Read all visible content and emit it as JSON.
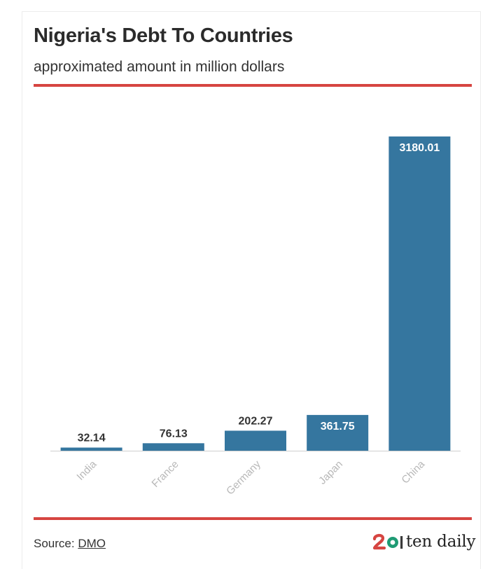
{
  "header": {
    "title": "Nigeria's Debt To Countries",
    "subtitle": "approximated amount in million dollars"
  },
  "footer": {
    "source_label": "Source:",
    "source_link": "DMO",
    "brand_name": "ten daily"
  },
  "colors": {
    "bar": "#35769f",
    "accent_rule": "#d64541",
    "axis": "#cfcfcf",
    "tick_label": "#b8b8b8",
    "label_dark": "#333333",
    "label_light": "#ffffff"
  },
  "chart_data": {
    "type": "bar",
    "title": "Nigeria's Debt To Countries",
    "subtitle": "approximated amount in million dollars",
    "categories": [
      "India",
      "France",
      "Germany",
      "Japan",
      "China"
    ],
    "values": [
      32.14,
      76.13,
      202.27,
      361.75,
      3180.01
    ],
    "value_labels": [
      "32.14",
      "76.13",
      "202.27",
      "361.75",
      "3180.01"
    ],
    "xlabel": "",
    "ylabel": "",
    "ylim": [
      0,
      3180.01
    ],
    "grid": false,
    "legend": "none"
  }
}
